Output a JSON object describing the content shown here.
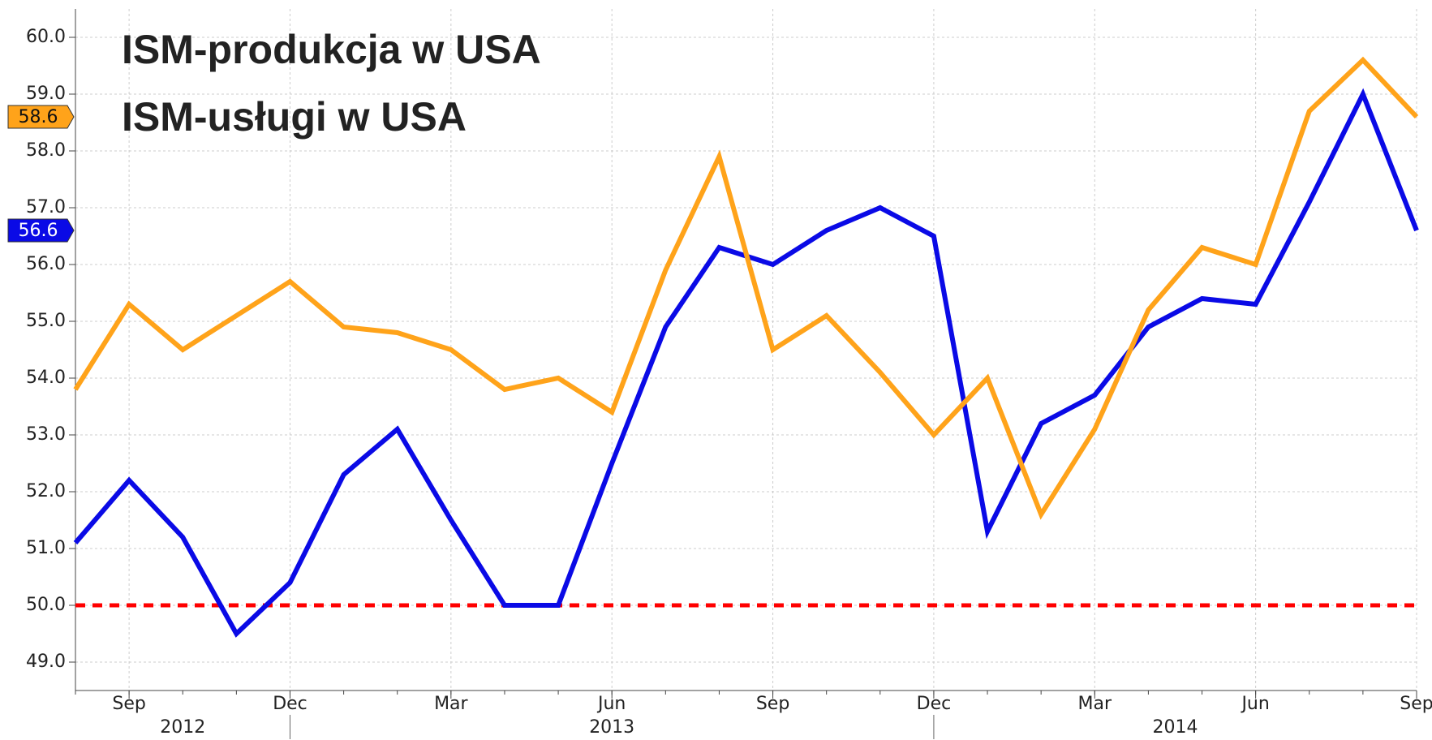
{
  "chart_data": {
    "type": "line",
    "x": [
      "2012-08",
      "2012-09",
      "2012-10",
      "2012-11",
      "2012-12",
      "2013-01",
      "2013-02",
      "2013-03",
      "2013-04",
      "2013-05",
      "2013-06",
      "2013-07",
      "2013-08",
      "2013-09",
      "2013-10",
      "2013-11",
      "2013-12",
      "2014-01",
      "2014-02",
      "2014-03",
      "2014-04",
      "2014-05",
      "2014-06",
      "2014-07",
      "2014-08",
      "2014-09"
    ],
    "series": [
      {
        "name": "ISM-produkcja w USA",
        "color": "#0a0ae6",
        "values": [
          51.1,
          52.2,
          51.2,
          49.5,
          50.4,
          52.3,
          53.1,
          51.5,
          50.0,
          50.0,
          52.5,
          54.9,
          56.3,
          56.0,
          56.6,
          57.0,
          56.5,
          51.3,
          53.2,
          53.7,
          54.9,
          55.4,
          55.3,
          57.1,
          59.0,
          56.6
        ]
      },
      {
        "name": "ISM-usługi w USA",
        "color": "#ffa31a",
        "values": [
          53.8,
          55.3,
          54.5,
          55.1,
          55.7,
          54.9,
          54.8,
          54.5,
          53.8,
          54.0,
          53.4,
          55.9,
          57.9,
          54.5,
          55.1,
          54.1,
          53.0,
          54.0,
          51.6,
          53.1,
          55.2,
          56.3,
          56.0,
          58.7,
          59.6,
          58.6
        ]
      }
    ],
    "legend_colors": [
      "#1010d0",
      "#f08030"
    ],
    "ylim": [
      48.5,
      60.5
    ],
    "yticks": [
      {
        "value": 49,
        "label": "49.0"
      },
      {
        "value": 50,
        "label": "50.0"
      },
      {
        "value": 51,
        "label": "51.0"
      },
      {
        "value": 52,
        "label": "52.0"
      },
      {
        "value": 53,
        "label": "53.0"
      },
      {
        "value": 54,
        "label": "54.0"
      },
      {
        "value": 55,
        "label": "55.0"
      },
      {
        "value": 56,
        "label": "56.0"
      },
      {
        "value": 57,
        "label": "57.0"
      },
      {
        "value": 58,
        "label": "58.0"
      },
      {
        "value": 59,
        "label": "59.0"
      },
      {
        "value": 60,
        "label": "60.0"
      }
    ],
    "xticks": [
      {
        "value": "2012-09",
        "label": "Sep"
      },
      {
        "value": "2012-12",
        "label": "Dec"
      },
      {
        "value": "2013-03",
        "label": "Mar"
      },
      {
        "value": "2013-06",
        "label": "Jun"
      },
      {
        "value": "2013-09",
        "label": "Sep"
      },
      {
        "value": "2013-12",
        "label": "Dec"
      },
      {
        "value": "2014-03",
        "label": "Mar"
      },
      {
        "value": "2014-06",
        "label": "Jun"
      },
      {
        "value": "2014-09",
        "label": "Sep"
      }
    ],
    "years": [
      "2012",
      "2013",
      "2014"
    ],
    "reference_line": {
      "value": 50,
      "color": "#ff0000"
    },
    "grid": true
  }
}
